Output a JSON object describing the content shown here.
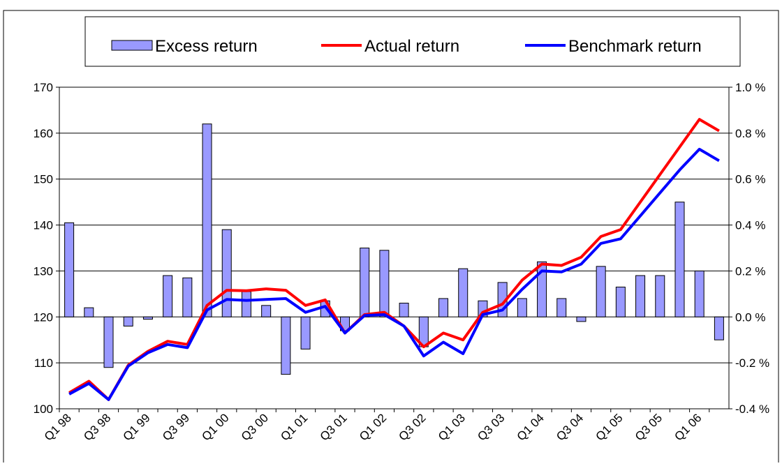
{
  "chart_data": {
    "type": "bar-line",
    "categories": [
      "Q1 98",
      null,
      "Q3 98",
      null,
      "Q1 99",
      null,
      "Q3 99",
      null,
      "Q1 00",
      null,
      "Q3 00",
      null,
      "Q1 01",
      null,
      "Q3 01",
      null,
      "Q1 02",
      null,
      "Q3 02",
      null,
      "Q1 03",
      null,
      "Q3 03",
      null,
      "Q1 04",
      null,
      "Q3 04",
      null,
      "Q1 05",
      null,
      "Q3 05",
      null,
      "Q1 06",
      null
    ],
    "series": [
      {
        "name": "Excess return",
        "type": "bar",
        "axis": "y2",
        "color": "#9999ff",
        "values": [
          0.41,
          0.04,
          -0.22,
          -0.04,
          -0.01,
          0.18,
          0.17,
          0.84,
          0.38,
          0.11,
          0.05,
          -0.25,
          -0.14,
          0.07,
          -0.06,
          0.3,
          0.29,
          0.06,
          -0.13,
          0.08,
          0.21,
          0.07,
          0.15,
          0.08,
          0.24,
          0.08,
          -0.02,
          0.22,
          0.13,
          0.18,
          0.18,
          0.5,
          0.2,
          -0.1
        ]
      },
      {
        "name": "Actual return",
        "type": "line",
        "color": "#ff0000",
        "values": [
          103.5,
          106,
          102,
          109.5,
          112.5,
          114.7,
          114,
          122.5,
          125.8,
          125.7,
          126.1,
          125.8,
          122.5,
          123.7,
          116.5,
          120.5,
          121,
          118,
          113.5,
          116.5,
          115,
          121,
          122.8,
          128,
          131.5,
          131.2,
          133,
          137.5,
          139,
          145,
          151,
          157,
          163,
          160.5
        ]
      },
      {
        "name": "Benchmark return",
        "type": "line",
        "color": "#0000ff",
        "values": [
          103.2,
          105.5,
          102,
          109.3,
          112.2,
          114,
          113.3,
          121.5,
          123.8,
          123.6,
          123.8,
          124,
          121,
          122.3,
          116.5,
          120.3,
          120.5,
          118,
          111.5,
          114.5,
          112,
          120.5,
          121.5,
          126,
          130,
          129.8,
          131.5,
          136,
          137,
          142,
          147,
          152,
          156.5,
          154
        ]
      }
    ],
    "ylim": [
      100,
      170
    ],
    "yticks": [
      100,
      110,
      120,
      130,
      140,
      150,
      160,
      170
    ],
    "y2lim": [
      -0.4,
      1.0
    ],
    "y2ticks": [
      {
        "value": -0.4,
        "label": "-0.4 %"
      },
      {
        "value": -0.2,
        "label": "-0.2 %"
      },
      {
        "value": 0,
        "label": "0.0 %"
      },
      {
        "value": 0.2,
        "label": "0.2 %"
      },
      {
        "value": 0.4,
        "label": "0.4 %"
      },
      {
        "value": 0.6,
        "label": "0.6 %"
      },
      {
        "value": 0.8,
        "label": "0.8 %"
      },
      {
        "value": 1.0,
        "label": "1.0 %"
      }
    ],
    "grid": true,
    "legend": "top"
  }
}
